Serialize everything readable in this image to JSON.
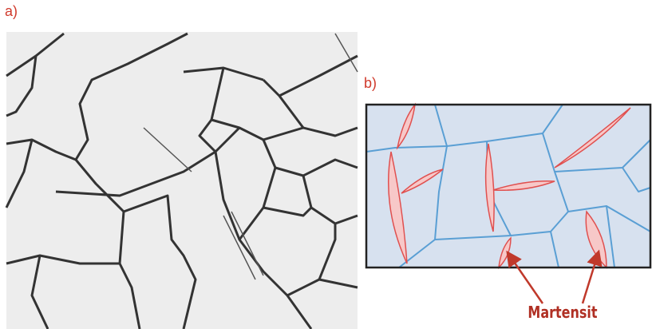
{
  "panels": [
    {
      "label": "a)"
    },
    {
      "label": "b)"
    }
  ],
  "annotation": "Martensit"
}
